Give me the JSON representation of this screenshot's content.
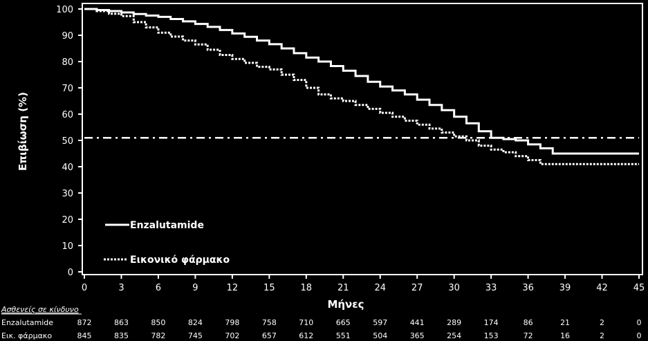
{
  "chart_data": {
    "type": "line",
    "xlabel": "Μήνες",
    "ylabel": "Επιβίωση (%)",
    "xlim": [
      0,
      45
    ],
    "ylim": [
      0,
      100
    ],
    "x_ticks": [
      "0",
      "3",
      "6",
      "9",
      "12",
      "15",
      "18",
      "21",
      "24",
      "27",
      "30",
      "33",
      "36",
      "39",
      "42",
      "45"
    ],
    "y_ticks": [
      "0",
      "10",
      "20",
      "30",
      "40",
      "50",
      "60",
      "70",
      "80",
      "90",
      "100"
    ],
    "grid": false,
    "legend_position": "bottom-left",
    "reference_line": {
      "y": 51,
      "x_end": 45,
      "style": "dash-dot"
    },
    "series": [
      {
        "name": "Enzalutamide",
        "style": "solid",
        "color": "#ffffff",
        "x": [
          0,
          1,
          2,
          3,
          4,
          5,
          6,
          7,
          8,
          9,
          10,
          11,
          12,
          13,
          14,
          15,
          16,
          17,
          18,
          19,
          20,
          21,
          22,
          23,
          24,
          25,
          26,
          27,
          28,
          29,
          30,
          31,
          32,
          33,
          34,
          35,
          36,
          37,
          38,
          39,
          42,
          45
        ],
        "y": [
          100,
          99.6,
          99.2,
          98.7,
          98.1,
          97.5,
          97,
          96.2,
          95.3,
          94.3,
          93.2,
          92,
          90.7,
          89.4,
          88,
          86.6,
          85,
          83.2,
          81.5,
          80,
          78.3,
          76.5,
          74.5,
          72.3,
          70.5,
          69,
          67.5,
          65.5,
          63.5,
          61.5,
          59,
          56.5,
          53.5,
          51,
          50.5,
          50,
          48.5,
          47,
          45,
          45,
          45,
          45
        ]
      },
      {
        "name": "Εικονικό φάρμακο",
        "style": "dotted",
        "color": "#ffffff",
        "x": [
          0,
          1,
          2,
          3,
          4,
          5,
          6,
          7,
          8,
          9,
          10,
          11,
          12,
          13,
          14,
          15,
          16,
          17,
          18,
          19,
          20,
          21,
          22,
          23,
          24,
          25,
          26,
          27,
          28,
          29,
          30,
          31,
          32,
          33,
          34,
          35,
          36,
          37,
          39,
          42,
          45
        ],
        "y": [
          100,
          99.2,
          98.2,
          97.3,
          95,
          93,
          91,
          89.5,
          88,
          86.5,
          84.5,
          82.5,
          81,
          79.5,
          78,
          77,
          75,
          73,
          70,
          67.5,
          66,
          65,
          63.5,
          62,
          60.5,
          59,
          57.5,
          56,
          54.5,
          53,
          51.5,
          50,
          48,
          46.5,
          45.5,
          44,
          42.5,
          41,
          41,
          41,
          41
        ]
      }
    ],
    "risk_table": {
      "title": "Ασθενείς σε κίνδυνο",
      "times": [
        "0",
        "3",
        "6",
        "9",
        "12",
        "15",
        "18",
        "21",
        "24",
        "27",
        "30",
        "33",
        "36",
        "39",
        "42",
        "45"
      ],
      "rows": [
        {
          "label": "Enzalutamide",
          "values": [
            "872",
            "863",
            "850",
            "824",
            "798",
            "758",
            "710",
            "665",
            "597",
            "441",
            "289",
            "174",
            "86",
            "21",
            "2",
            "0"
          ]
        },
        {
          "label": "Εικ. φάρμακο",
          "values": [
            "845",
            "835",
            "782",
            "745",
            "702",
            "657",
            "612",
            "551",
            "504",
            "365",
            "254",
            "153",
            "72",
            "16",
            "2",
            "0"
          ]
        }
      ]
    }
  }
}
